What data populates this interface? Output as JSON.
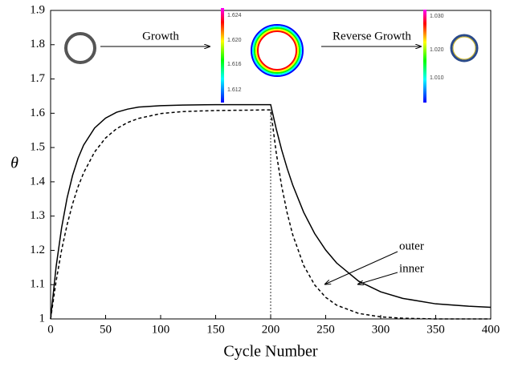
{
  "chart_data": {
    "type": "line",
    "xlabel": "Cycle Number",
    "ylabel": "θ",
    "x": [
      0,
      5,
      10,
      15,
      20,
      25,
      30,
      40,
      50,
      60,
      70,
      80,
      100,
      120,
      150,
      180,
      200,
      205,
      210,
      215,
      220,
      230,
      240,
      250,
      260,
      280,
      300,
      320,
      350,
      380,
      400
    ],
    "series": [
      {
        "name": "inner",
        "color": "#000000",
        "dash": "solid",
        "values": [
          1.0,
          1.152,
          1.266,
          1.353,
          1.419,
          1.469,
          1.507,
          1.557,
          1.586,
          1.603,
          1.612,
          1.618,
          1.622,
          1.624,
          1.625,
          1.625,
          1.625,
          1.555,
          1.493,
          1.439,
          1.391,
          1.311,
          1.249,
          1.201,
          1.163,
          1.11,
          1.079,
          1.06,
          1.044,
          1.037,
          1.034
        ]
      },
      {
        "name": "outer",
        "color": "#000000",
        "dash": "dashed",
        "values": [
          1.0,
          1.11,
          1.201,
          1.275,
          1.336,
          1.386,
          1.426,
          1.487,
          1.528,
          1.555,
          1.573,
          1.585,
          1.599,
          1.605,
          1.608,
          1.609,
          1.61,
          1.486,
          1.387,
          1.309,
          1.246,
          1.156,
          1.099,
          1.063,
          1.04,
          1.016,
          1.006,
          1.002,
          1.0,
          1.0,
          1.0
        ]
      }
    ],
    "xlim": [
      0,
      400
    ],
    "ylim": [
      1,
      1.9
    ],
    "xticks": [
      0,
      50,
      100,
      150,
      200,
      250,
      300,
      350,
      400
    ],
    "yticks": [
      1,
      1.1,
      1.2,
      1.3,
      1.4,
      1.5,
      1.6,
      1.7,
      1.8,
      1.9
    ],
    "annotations": [
      "Growth",
      "Reverse Growth"
    ],
    "colorbar_growth": [
      "1.624",
      "1.620",
      "1.616",
      "1.612"
    ],
    "colorbar_reverse": [
      "1.030",
      "1.020",
      "1.010"
    ]
  }
}
